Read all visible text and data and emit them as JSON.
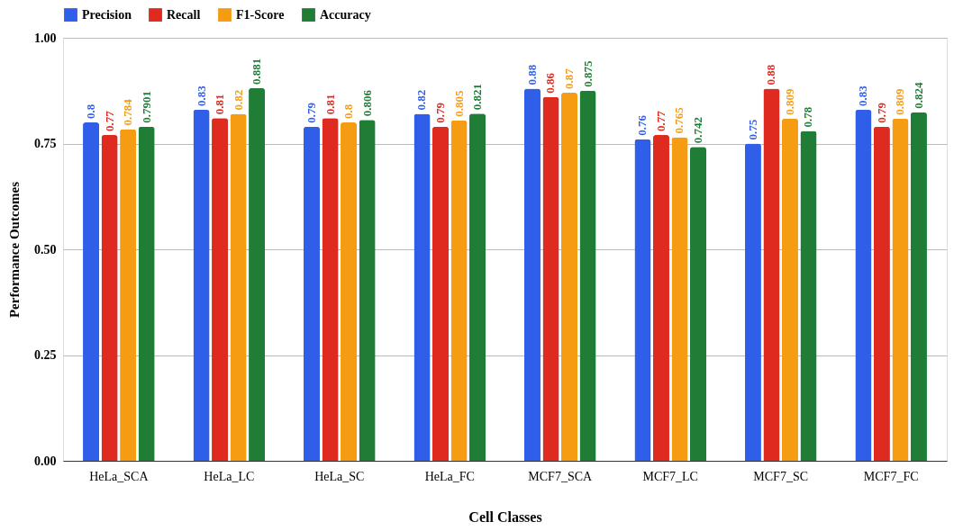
{
  "chart_data": {
    "type": "bar",
    "xlabel": "Cell Classes",
    "ylabel": "Performance Outcomes",
    "categories": [
      "HeLa_SCA",
      "HeLa_LC",
      "HeLa_SC",
      "HeLa_FC",
      "MCF7_SCA",
      "MCF7_LC",
      "MCF7_SC",
      "MCF7_FC"
    ],
    "series": [
      {
        "name": "Precision",
        "color": "#2f5fe8",
        "values": [
          0.8,
          0.83,
          0.79,
          0.82,
          0.88,
          0.76,
          0.75,
          0.83
        ]
      },
      {
        "name": "Recall",
        "color": "#de2a1f",
        "values": [
          0.77,
          0.81,
          0.81,
          0.79,
          0.86,
          0.77,
          0.88,
          0.79
        ]
      },
      {
        "name": "F1-Score",
        "color": "#f59c12",
        "values": [
          0.784,
          0.82,
          0.8,
          0.805,
          0.87,
          0.765,
          0.809,
          0.809
        ]
      },
      {
        "name": "Accuracy",
        "color": "#1f7d35",
        "values": [
          0.7901,
          0.881,
          0.806,
          0.821,
          0.875,
          0.742,
          0.78,
          0.824
        ]
      }
    ],
    "ylim": [
      0,
      1
    ],
    "yticks": [
      {
        "value": 0,
        "label": "0.00"
      },
      {
        "value": 0.25,
        "label": "0.25"
      },
      {
        "value": 0.5,
        "label": "0.50"
      },
      {
        "value": 0.75,
        "label": "0.75"
      },
      {
        "value": 1,
        "label": "1.00"
      }
    ],
    "grid": "y",
    "legend": "top",
    "data_labels": true
  }
}
